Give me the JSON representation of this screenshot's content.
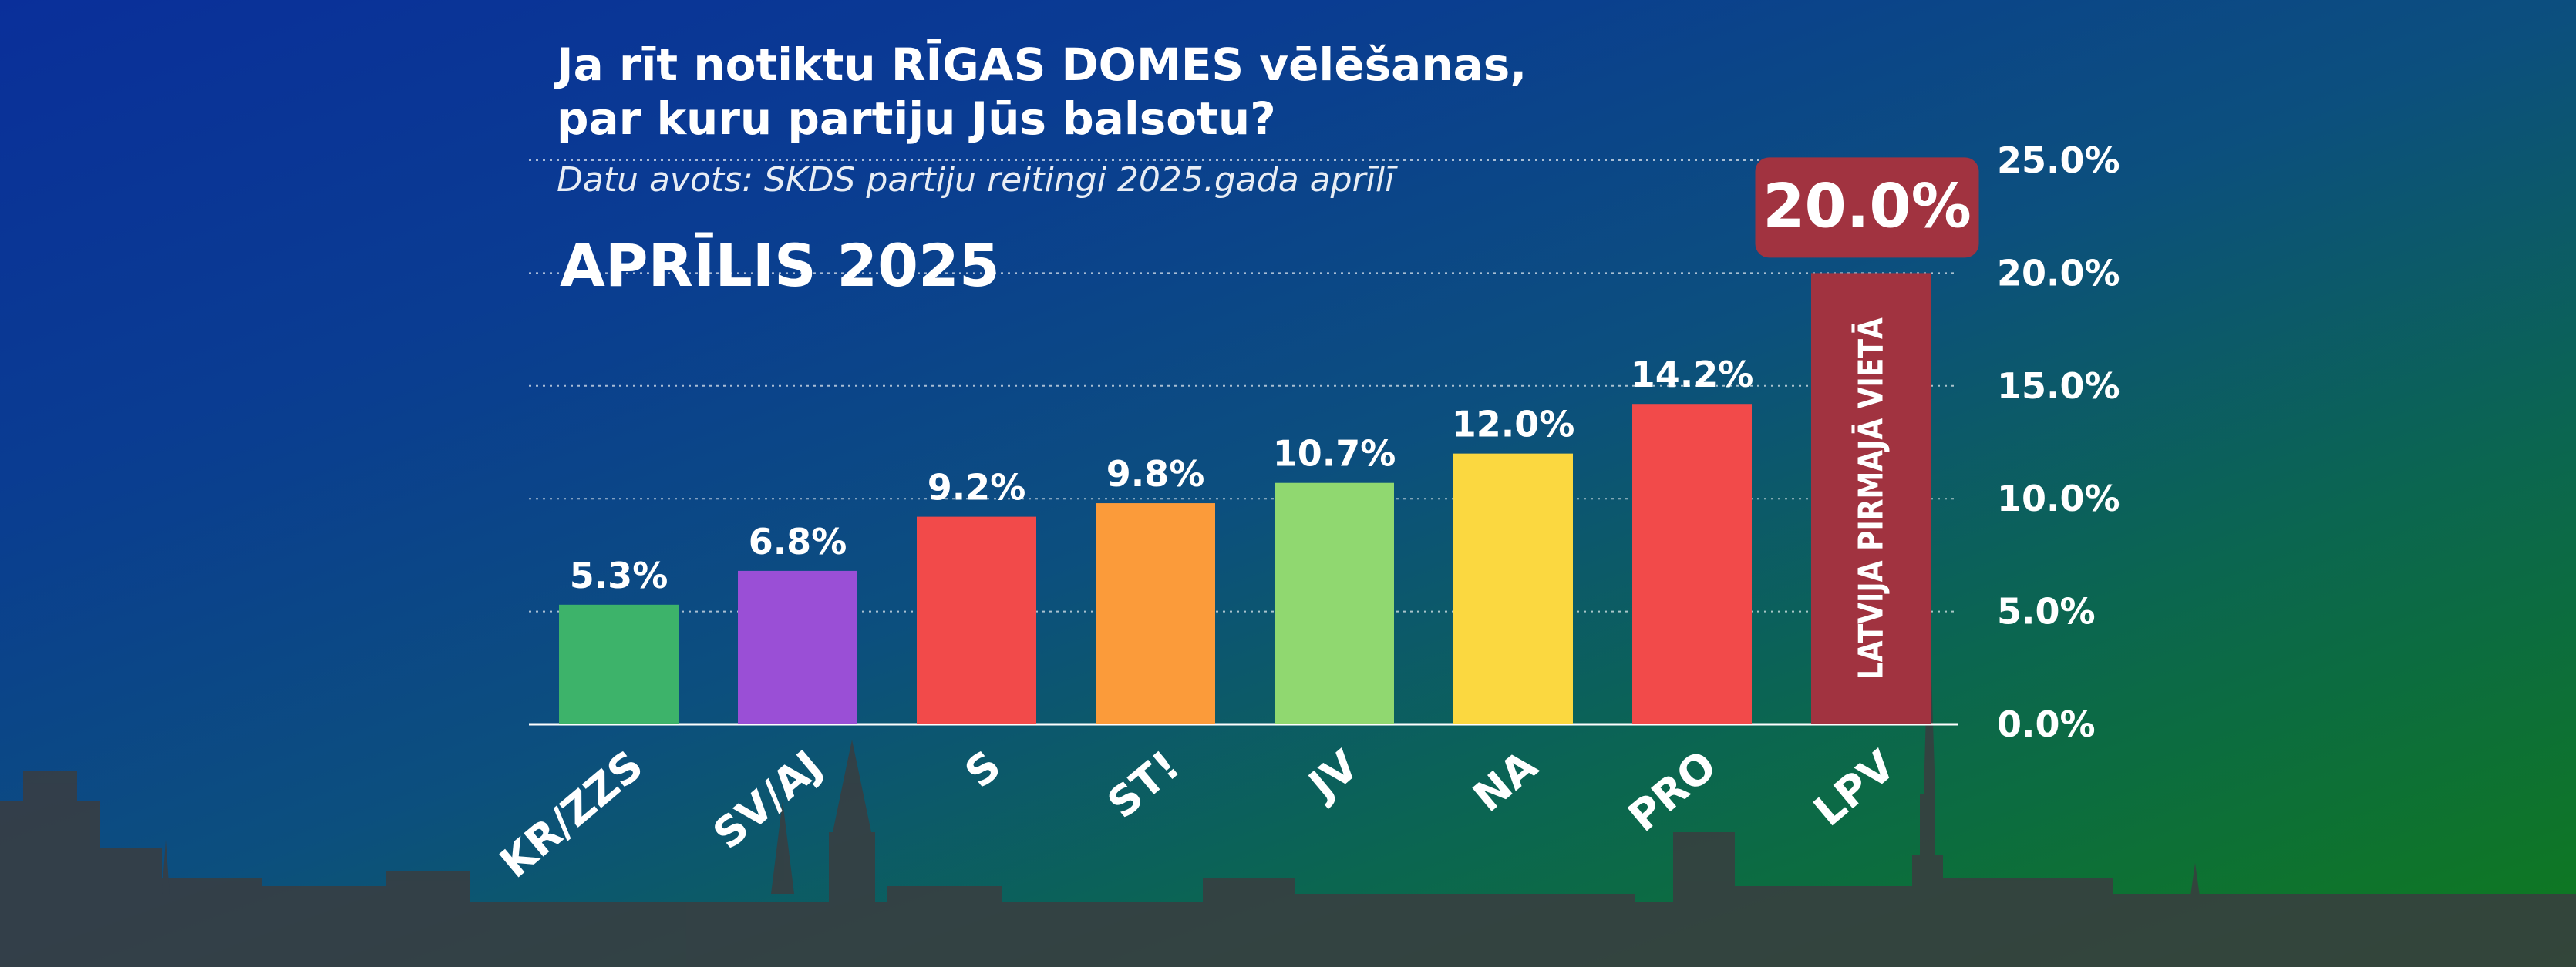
{
  "header": {
    "title_line1": "Ja rīt notiktu RĪGAS DOMES vēlēšanas,",
    "title_line2": "par kuru partiju Jūs balsotu?",
    "source": "Datu avots: SKDS partiju reitingi 2025.gada aprīlī",
    "period": "APRĪLIS 2025"
  },
  "chart_data": {
    "type": "bar",
    "categories": [
      "KR/ZZS",
      "SV/AJ",
      "S",
      "ST!",
      "JV",
      "NA",
      "PRO",
      "LPV"
    ],
    "values": [
      5.3,
      6.8,
      9.2,
      9.8,
      10.7,
      12.0,
      14.2,
      20.0
    ],
    "value_labels": [
      "5.3%",
      "6.8%",
      "9.2%",
      "9.8%",
      "10.7%",
      "12.0%",
      "14.2%",
      "20.0%"
    ],
    "colors": [
      "#3db36a",
      "#9a4fd6",
      "#f24a4a",
      "#fb9b3a",
      "#90d870",
      "#fbd840",
      "#f24a4a",
      "#a13340"
    ],
    "ylim": [
      0,
      25
    ],
    "yticks": [
      0,
      5,
      10,
      15,
      20,
      25
    ],
    "ytick_labels": [
      "0.0%",
      "5.0%",
      "10.0%",
      "15.0%",
      "20.0%",
      "25.0%"
    ],
    "grid": true,
    "highlight_annotation": "LATVIJA PIRMAJĀ VIETĀ",
    "highlight_badge_color": "#a13340"
  }
}
